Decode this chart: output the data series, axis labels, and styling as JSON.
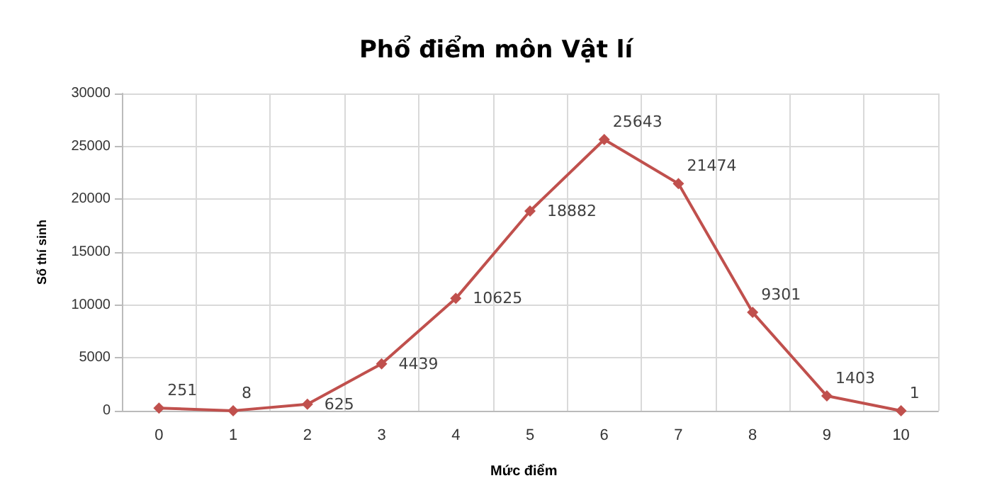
{
  "chart_data": {
    "type": "line",
    "title": "Phổ điểm môn Vật lí",
    "xlabel": "Mức điểm",
    "ylabel": "Số thí sinh",
    "categories": [
      "0",
      "1",
      "2",
      "3",
      "4",
      "5",
      "6",
      "7",
      "8",
      "9",
      "10"
    ],
    "series": [
      {
        "color": "#c0504d",
        "values": [
          251,
          8,
          625,
          4439,
          10625,
          18882,
          25643,
          21474,
          9301,
          1403,
          1
        ]
      }
    ],
    "ylim": [
      0,
      30000
    ],
    "yticks": [
      0,
      5000,
      10000,
      15000,
      20000,
      25000,
      30000
    ],
    "grid": true,
    "marker": "diamond",
    "line_style": "solid",
    "data_labels": true
  }
}
